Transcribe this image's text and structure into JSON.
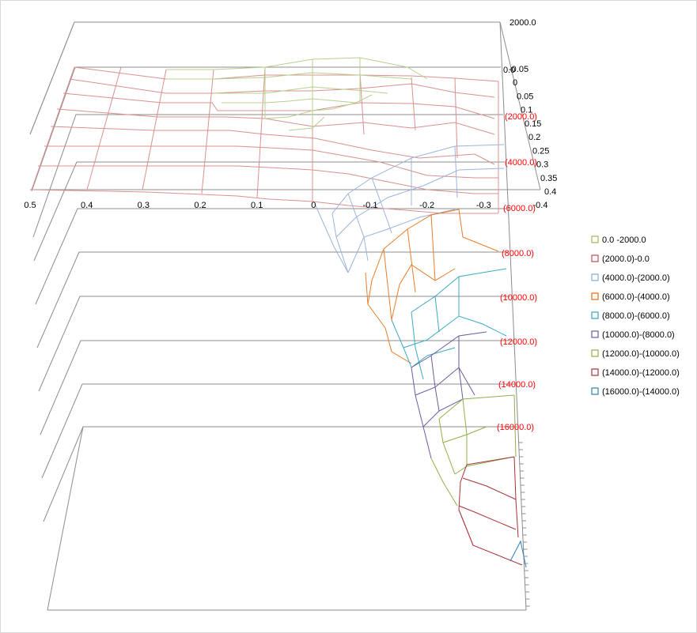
{
  "chart_data": {
    "type": "surface",
    "x_ticks": [
      "0.5",
      "0.4",
      "0.3",
      "0.2",
      "0.1",
      "0",
      "-0.1",
      "-0.2",
      "-0.3",
      "-0.4"
    ],
    "y_ticks": [
      "-0.05",
      "0",
      "0.05",
      "0.1",
      "0.15",
      "0.2",
      "0.25",
      "0.3",
      "0.35",
      "0.4"
    ],
    "z_ticks": [
      "2000.0",
      "0.0",
      "(2000.0)",
      "(4000.0)",
      "(6000.0)",
      "(8000.0)",
      "(10000.0)",
      "(12000.0)",
      "(14000.0)",
      "(16000.0)"
    ],
    "z_range": [
      -16000,
      2000
    ],
    "legend_position": "right",
    "legend": [
      {
        "label": "0.0 -2000.0",
        "color": "#9bbb59"
      },
      {
        "label": "(2000.0)-0.0",
        "color": "#c0504d"
      },
      {
        "label": "(4000.0)-(2000.0)",
        "color": "#8ea9db"
      },
      {
        "label": "(6000.0)-(4000.0)",
        "color": "#e46c0a"
      },
      {
        "label": "(8000.0)-(6000.0)",
        "color": "#31a6bd"
      },
      {
        "label": "(10000.0)-(8000.0)",
        "color": "#6e5aa0"
      },
      {
        "label": "(12000.0)-(10000.0)",
        "color": "#8eb04a"
      },
      {
        "label": "(14000.0)-(12000.0)",
        "color": "#a83236"
      },
      {
        "label": "(16000.0)-(14000.0)",
        "color": "#2f7fb8"
      }
    ],
    "negative_label_color": "#ff0000",
    "grid": true
  }
}
